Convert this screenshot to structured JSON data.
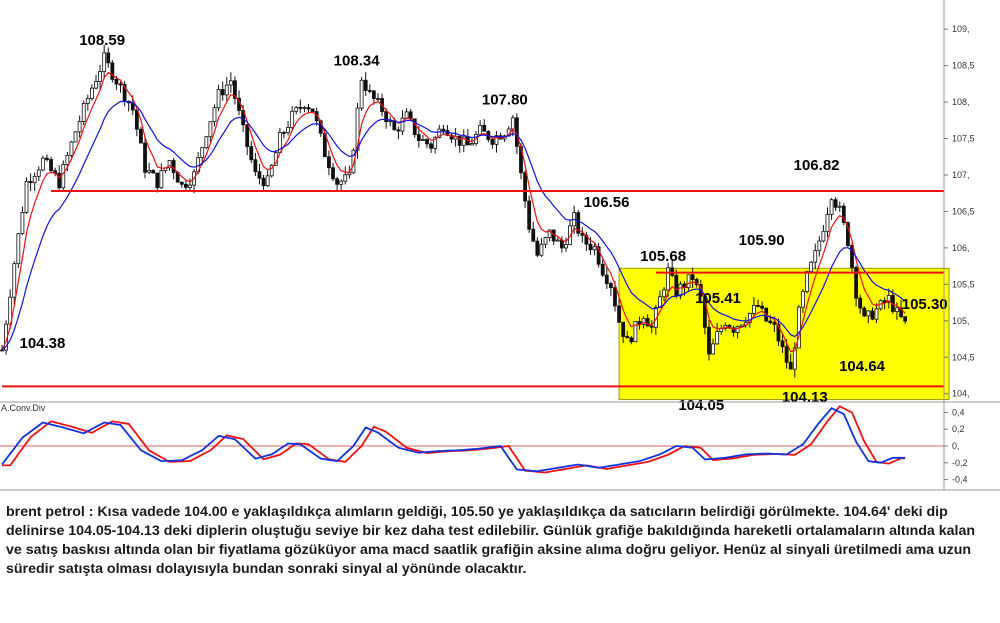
{
  "chart_data": {
    "type": "line",
    "instrument_note": "brent petrol",
    "price_axis": {
      "ylim": [
        103.9,
        109.4
      ],
      "ticks": [
        "104,",
        "104,5",
        "105,",
        "105,5",
        "106,",
        "106,5",
        "107,",
        "107,5",
        "108,",
        "108,5",
        "109,"
      ],
      "tick_values": [
        104,
        104.5,
        105,
        105.5,
        106,
        106.5,
        107,
        107.5,
        108,
        108.5,
        109
      ]
    },
    "macd_panel": {
      "label": "A.Conv.Div",
      "ylim": [
        -0.5,
        0.5
      ],
      "ticks": [
        "0,4",
        "0,2",
        "0,",
        "-0,2",
        "-0,4"
      ],
      "tick_values": [
        0.4,
        0.2,
        0,
        -0.2,
        -0.4
      ]
    },
    "annotations": [
      {
        "text": "108.59",
        "bar": 25,
        "value": 108.59
      },
      {
        "text": "108.34",
        "bar": 88,
        "value": 108.34
      },
      {
        "text": "107.80",
        "bar": 125,
        "value": 107.8
      },
      {
        "text": "106.56",
        "bar": 145,
        "value": 106.56
      },
      {
        "text": "105.68",
        "bar": 163,
        "value": 105.68
      },
      {
        "text": "105.90",
        "bar": 192,
        "value": 105.9
      },
      {
        "text": "106.82",
        "bar": 203,
        "value": 106.82
      },
      {
        "text": "105.41",
        "bar": 185,
        "value": 105.41
      },
      {
        "text": "105.30",
        "bar": 216,
        "value": 105.3
      },
      {
        "text": "104.64",
        "bar": 208,
        "value": 104.64
      },
      {
        "text": "104.38",
        "bar": 5,
        "value": 104.38
      },
      {
        "text": "104.05",
        "bar": 165,
        "value": 104.05
      },
      {
        "text": "104.13",
        "bar": 194,
        "value": 104.13
      }
    ],
    "support_resistance": [
      {
        "name": "resistance",
        "value": 106.78,
        "from_bar": 12,
        "to_bar": 231,
        "color": "#ee1111"
      },
      {
        "name": "support",
        "value": 104.1,
        "from_bar": 0,
        "to_bar": 231,
        "color": "#ee1111"
      },
      {
        "name": "range-top",
        "value": 105.66,
        "from_bar": 160,
        "to_bar": 231,
        "color": "#ee1111"
      }
    ],
    "range_box": {
      "from_bar": 151,
      "to_bar": 231,
      "top": 105.72,
      "bottom": 103.92,
      "color": "#ffff00"
    },
    "price_path": [
      [
        0,
        104.6
      ],
      [
        3,
        105.8
      ],
      [
        6,
        106.9
      ],
      [
        10,
        107.2
      ],
      [
        14,
        106.9
      ],
      [
        18,
        107.6
      ],
      [
        22,
        108.2
      ],
      [
        25,
        108.59
      ],
      [
        28,
        108.3
      ],
      [
        32,
        107.9
      ],
      [
        35,
        107.1
      ],
      [
        38,
        106.9
      ],
      [
        41,
        107.2
      ],
      [
        44,
        106.85
      ],
      [
        47,
        107.0
      ],
      [
        50,
        107.6
      ],
      [
        53,
        108.1
      ],
      [
        56,
        108.3
      ],
      [
        59,
        107.6
      ],
      [
        62,
        107.0
      ],
      [
        65,
        106.9
      ],
      [
        68,
        107.5
      ],
      [
        71,
        107.8
      ],
      [
        74,
        108.0
      ],
      [
        76,
        107.9
      ],
      [
        79,
        107.3
      ],
      [
        82,
        106.9
      ],
      [
        85,
        106.95
      ],
      [
        88,
        108.34
      ],
      [
        90,
        108.1
      ],
      [
        93,
        107.9
      ],
      [
        96,
        107.6
      ],
      [
        99,
        107.8
      ],
      [
        102,
        107.5
      ],
      [
        105,
        107.4
      ],
      [
        108,
        107.7
      ],
      [
        111,
        107.5
      ],
      [
        114,
        107.4
      ],
      [
        117,
        107.6
      ],
      [
        120,
        107.5
      ],
      [
        123,
        107.6
      ],
      [
        125,
        107.8
      ],
      [
        127,
        107.0
      ],
      [
        129,
        106.3
      ],
      [
        131,
        105.9
      ],
      [
        134,
        106.2
      ],
      [
        137,
        106.0
      ],
      [
        140,
        106.4
      ],
      [
        142,
        106.1
      ],
      [
        145,
        106.0
      ],
      [
        147,
        105.7
      ],
      [
        149,
        105.5
      ],
      [
        151,
        105.0
      ],
      [
        153,
        104.7
      ],
      [
        155,
        104.9
      ],
      [
        157,
        105.1
      ],
      [
        159,
        104.9
      ],
      [
        161,
        105.3
      ],
      [
        163,
        105.68
      ],
      [
        165,
        105.4
      ],
      [
        167,
        105.5
      ],
      [
        169,
        105.6
      ],
      [
        171,
        105.3
      ],
      [
        173,
        104.5
      ],
      [
        175,
        104.8
      ],
      [
        177,
        105.0
      ],
      [
        179,
        104.9
      ],
      [
        181,
        105.0
      ],
      [
        183,
        105.1
      ],
      [
        185,
        105.2
      ],
      [
        187,
        105.0
      ],
      [
        189,
        104.9
      ],
      [
        191,
        104.6
      ],
      [
        193,
        104.3
      ],
      [
        195,
        105.1
      ],
      [
        197,
        105.6
      ],
      [
        199,
        105.9
      ],
      [
        201,
        106.3
      ],
      [
        203,
        106.75
      ],
      [
        205,
        106.5
      ],
      [
        207,
        106.1
      ],
      [
        209,
        105.4
      ],
      [
        211,
        105.0
      ],
      [
        213,
        105.1
      ],
      [
        215,
        105.2
      ],
      [
        217,
        105.3
      ],
      [
        219,
        105.1
      ],
      [
        221,
        104.95
      ]
    ],
    "macd_path": [
      [
        0,
        -0.22
      ],
      [
        5,
        0.1
      ],
      [
        10,
        0.28
      ],
      [
        15,
        0.22
      ],
      [
        20,
        0.15
      ],
      [
        25,
        0.28
      ],
      [
        29,
        0.25
      ],
      [
        34,
        -0.05
      ],
      [
        39,
        -0.18
      ],
      [
        44,
        -0.17
      ],
      [
        49,
        -0.05
      ],
      [
        53,
        0.12
      ],
      [
        57,
        0.08
      ],
      [
        62,
        -0.15
      ],
      [
        66,
        -0.1
      ],
      [
        70,
        0.03
      ],
      [
        73,
        0.02
      ],
      [
        78,
        -0.15
      ],
      [
        82,
        -0.18
      ],
      [
        86,
        0.0
      ],
      [
        89,
        0.22
      ],
      [
        92,
        0.16
      ],
      [
        97,
        -0.02
      ],
      [
        102,
        -0.08
      ],
      [
        107,
        -0.06
      ],
      [
        112,
        -0.05
      ],
      [
        117,
        -0.03
      ],
      [
        122,
        0.0
      ],
      [
        126,
        -0.28
      ],
      [
        131,
        -0.3
      ],
      [
        136,
        -0.26
      ],
      [
        141,
        -0.22
      ],
      [
        146,
        -0.26
      ],
      [
        151,
        -0.22
      ],
      [
        156,
        -0.18
      ],
      [
        161,
        -0.1
      ],
      [
        165,
        0.0
      ],
      [
        169,
        -0.02
      ],
      [
        172,
        -0.16
      ],
      [
        177,
        -0.14
      ],
      [
        182,
        -0.1
      ],
      [
        187,
        -0.09
      ],
      [
        192,
        -0.1
      ],
      [
        196,
        0.02
      ],
      [
        200,
        0.28
      ],
      [
        203,
        0.45
      ],
      [
        206,
        0.38
      ],
      [
        209,
        0.05
      ],
      [
        212,
        -0.18
      ],
      [
        215,
        -0.2
      ],
      [
        218,
        -0.14
      ],
      [
        221,
        -0.14
      ]
    ]
  },
  "caption": {
    "text": "brent petrol : Kısa vadede 104.00 e yaklaşıldıkça alımların geldiği, 105.50 ye yaklaşıldıkça da satıcıların belirdiği görülmekte. 104.64' deki dip delinirse 104.05-104.13 deki diplerin oluştuğu seviye bir kez daha test edilebilir. Günlük grafiğe bakıldığında hareketli ortalamaların altında kalan ve satış baskısı altında olan bir fiyatlama gözüküyor ama macd saatlik grafiğin aksine alıma doğru geliyor. Henüz al sinyali üretilmedi ama uzun süredir satışta olması dolayısıyla bundan sonraki sinyal al yönünde olacaktır."
  },
  "colors": {
    "candles": "#111111",
    "ma_fast": "#ee1111",
    "ma_slow": "#1111dd",
    "macd_line": "#1133dd",
    "signal_line": "#ee1111",
    "range_box": "#ffff00",
    "level_line": "#ee1111"
  }
}
